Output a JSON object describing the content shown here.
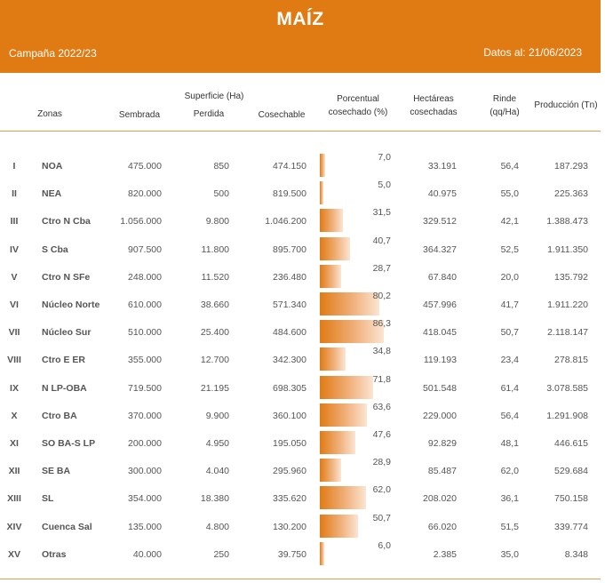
{
  "header": {
    "title": "MAÍZ",
    "campaign": "Campaña 2022/23",
    "date": "Datos al: 21/06/2023"
  },
  "columns": {
    "superficie_group": "Superficie (Ha)",
    "zonas": "Zonas",
    "sembrada": "Sembrada",
    "perdida": "Perdida",
    "cosechable": "Cosechable",
    "porcentual_l1": "Porcentual",
    "porcentual_l2": "cosechado (%)",
    "hectareas_l1": "Hectáreas",
    "hectareas_l2": "cosechadas",
    "rinde_l1": "Rinde",
    "rinde_l2": "(qq/Ha)",
    "produccion": "Producción (Tn)"
  },
  "rows": [
    {
      "num": "I",
      "zone": "NOA",
      "sembrada": "475.000",
      "perdida": "850",
      "cosechable": "474.150",
      "pct_label": "7,0",
      "pct": 7.0,
      "hectareas": "33.191",
      "rinde": "56,4",
      "produccion": "187.293"
    },
    {
      "num": "II",
      "zone": "NEA",
      "sembrada": "820.000",
      "perdida": "500",
      "cosechable": "819.500",
      "pct_label": "5,0",
      "pct": 5.0,
      "hectareas": "40.975",
      "rinde": "55,0",
      "produccion": "225.363"
    },
    {
      "num": "III",
      "zone": "Ctro N Cba",
      "sembrada": "1.056.000",
      "perdida": "9.800",
      "cosechable": "1.046.200",
      "pct_label": "31,5",
      "pct": 31.5,
      "hectareas": "329.512",
      "rinde": "42,1",
      "produccion": "1.388.473"
    },
    {
      "num": "IV",
      "zone": "S Cba",
      "sembrada": "907.500",
      "perdida": "11.800",
      "cosechable": "895.700",
      "pct_label": "40,7",
      "pct": 40.7,
      "hectareas": "364.327",
      "rinde": "52,5",
      "produccion": "1.911.350"
    },
    {
      "num": "V",
      "zone": "Ctro N SFe",
      "sembrada": "248.000",
      "perdida": "11.520",
      "cosechable": "236.480",
      "pct_label": "28,7",
      "pct": 28.7,
      "hectareas": "67.840",
      "rinde": "20,0",
      "produccion": "135.792"
    },
    {
      "num": "VI",
      "zone": "Núcleo Norte",
      "sembrada": "610.000",
      "perdida": "38.660",
      "cosechable": "571.340",
      "pct_label": "80,2",
      "pct": 80.2,
      "hectareas": "457.996",
      "rinde": "41,7",
      "produccion": "1.911.220"
    },
    {
      "num": "VII",
      "zone": "Núcleo Sur",
      "sembrada": "510.000",
      "perdida": "25.400",
      "cosechable": "484.600",
      "pct_label": "86,3",
      "pct": 86.3,
      "hectareas": "418.045",
      "rinde": "50,7",
      "produccion": "2.118.147"
    },
    {
      "num": "VIII",
      "zone": "Ctro E ER",
      "sembrada": "355.000",
      "perdida": "12.700",
      "cosechable": "342.300",
      "pct_label": "34,8",
      "pct": 34.8,
      "hectareas": "119.193",
      "rinde": "23,4",
      "produccion": "278.815"
    },
    {
      "num": "IX",
      "zone": "N LP-OBA",
      "sembrada": "719.500",
      "perdida": "21.195",
      "cosechable": "698.305",
      "pct_label": "71,8",
      "pct": 71.8,
      "hectareas": "501.548",
      "rinde": "61,4",
      "produccion": "3.078.585"
    },
    {
      "num": "X",
      "zone": "Ctro BA",
      "sembrada": "370.000",
      "perdida": "9.900",
      "cosechable": "360.100",
      "pct_label": "63,6",
      "pct": 63.6,
      "hectareas": "229.000",
      "rinde": "56,4",
      "produccion": "1.291.908"
    },
    {
      "num": "XI",
      "zone": "SO BA-S LP",
      "sembrada": "200.000",
      "perdida": "4.950",
      "cosechable": "195.050",
      "pct_label": "47,6",
      "pct": 47.6,
      "hectareas": "92.829",
      "rinde": "48,1",
      "produccion": "446.615"
    },
    {
      "num": "XII",
      "zone": "SE BA",
      "sembrada": "300.000",
      "perdida": "4.040",
      "cosechable": "295.960",
      "pct_label": "28,9",
      "pct": 28.9,
      "hectareas": "85.487",
      "rinde": "62,0",
      "produccion": "529.684"
    },
    {
      "num": "XIII",
      "zone": "SL",
      "sembrada": "354.000",
      "perdida": "18.380",
      "cosechable": "335.620",
      "pct_label": "62,0",
      "pct": 62.0,
      "hectareas": "208.020",
      "rinde": "36,1",
      "produccion": "750.158"
    },
    {
      "num": "XIV",
      "zone": "Cuenca Sal",
      "sembrada": "135.000",
      "perdida": "4.800",
      "cosechable": "130.200",
      "pct_label": "50,7",
      "pct": 50.7,
      "hectareas": "66.020",
      "rinde": "51,5",
      "produccion": "339.774"
    },
    {
      "num": "XV",
      "zone": "Otras",
      "sembrada": "40.000",
      "perdida": "250",
      "cosechable": "39.750",
      "pct_label": "6,0",
      "pct": 6.0,
      "hectareas": "2.385",
      "rinde": "35,0",
      "produccion": "8.348"
    }
  ],
  "colors": {
    "accent": "#e07b14",
    "bar_light": "#fbe5d2",
    "rule": "#e59a55"
  }
}
